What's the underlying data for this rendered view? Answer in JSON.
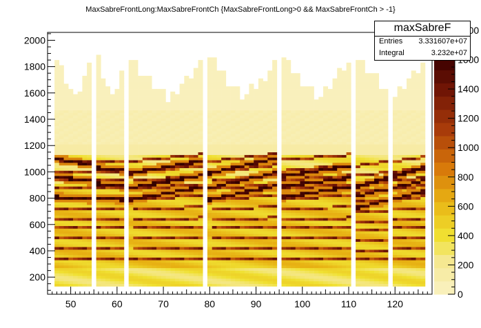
{
  "title": "MaxSabreFrontLong:MaxSabreFrontCh {MaxSabreFrontLong>0 && MaxSabreFrontCh > -1}",
  "stats": {
    "name": "maxSabreF",
    "entries_label": "Entries",
    "entries_value": "3.331607e+07",
    "integral_label": "Integral",
    "integral_value": "3.232e+07"
  },
  "chart_data": {
    "type": "heatmap",
    "title": "MaxSabreFrontLong:MaxSabreFrontCh {MaxSabreFrontLong>0 && MaxSabreFrontCh > -1}",
    "xlabel": "",
    "ylabel": "",
    "xlim": [
      45,
      128
    ],
    "ylim": [
      70,
      2060
    ],
    "x_ticks": [
      50,
      60,
      70,
      80,
      90,
      100,
      110,
      120
    ],
    "y_ticks": [
      200,
      400,
      600,
      800,
      1000,
      1200,
      1400,
      1600,
      1800,
      2000
    ],
    "z_ticks": [
      0,
      200,
      400,
      600,
      800,
      1000,
      1200,
      1400,
      1600,
      1800
    ],
    "z_tick_labels": [
      "0",
      "200",
      "400",
      "600",
      "800",
      "1000",
      "1200",
      "1400",
      "1600",
      "1800"
    ],
    "zlim": [
      0,
      1800
    ],
    "channels_x": [
      47,
      48,
      49,
      50,
      51,
      52,
      53,
      54,
      56,
      57,
      58,
      59,
      60,
      61,
      63,
      64,
      65,
      66,
      67,
      68,
      69,
      70,
      71,
      72,
      73,
      74,
      75,
      76,
      77,
      78,
      80,
      81,
      82,
      83,
      84,
      85,
      86,
      87,
      88,
      89,
      90,
      91,
      92,
      93,
      94,
      96,
      97,
      98,
      99,
      100,
      101,
      102,
      103,
      104,
      105,
      106,
      107,
      108,
      109,
      110,
      112,
      113,
      114,
      115,
      116,
      117,
      118,
      120,
      121,
      122,
      123,
      124,
      125,
      126
    ],
    "band_centers_y": [
      330,
      400,
      480,
      560,
      620,
      700,
      780,
      860,
      920,
      990,
      1070
    ],
    "bands": [
      {
        "segment": [
          47,
          55
        ],
        "start": [
          800,
          950,
          1090
        ],
        "end": [
          780,
          920,
          1040
        ]
      },
      {
        "segment": [
          56,
          62
        ],
        "start": [
          790,
          900,
          1020
        ],
        "end": [
          780,
          880,
          1000
        ]
      },
      {
        "segment": [
          63,
          79
        ],
        "start": [
          780,
          870,
          980
        ],
        "end": [
          880,
          970,
          1080
        ]
      },
      {
        "segment": [
          80,
          95
        ],
        "start": [
          780,
          870,
          980
        ],
        "end": [
          890,
          990,
          1100
        ]
      },
      {
        "segment": [
          96,
          111
        ],
        "start": [
          800,
          880,
          960
        ],
        "end": [
          880,
          950,
          1040
        ]
      },
      {
        "segment": [
          112,
          127
        ],
        "start": [
          720,
          810,
          880
        ],
        "end": [
          850,
          930,
          1030
        ]
      }
    ],
    "palette": "ROOT kBird/YellowBrown sequential: pale yellow (low) to yellow, orange, red-brown, black (high)",
    "grid": false,
    "legend": "top-right stats box"
  }
}
